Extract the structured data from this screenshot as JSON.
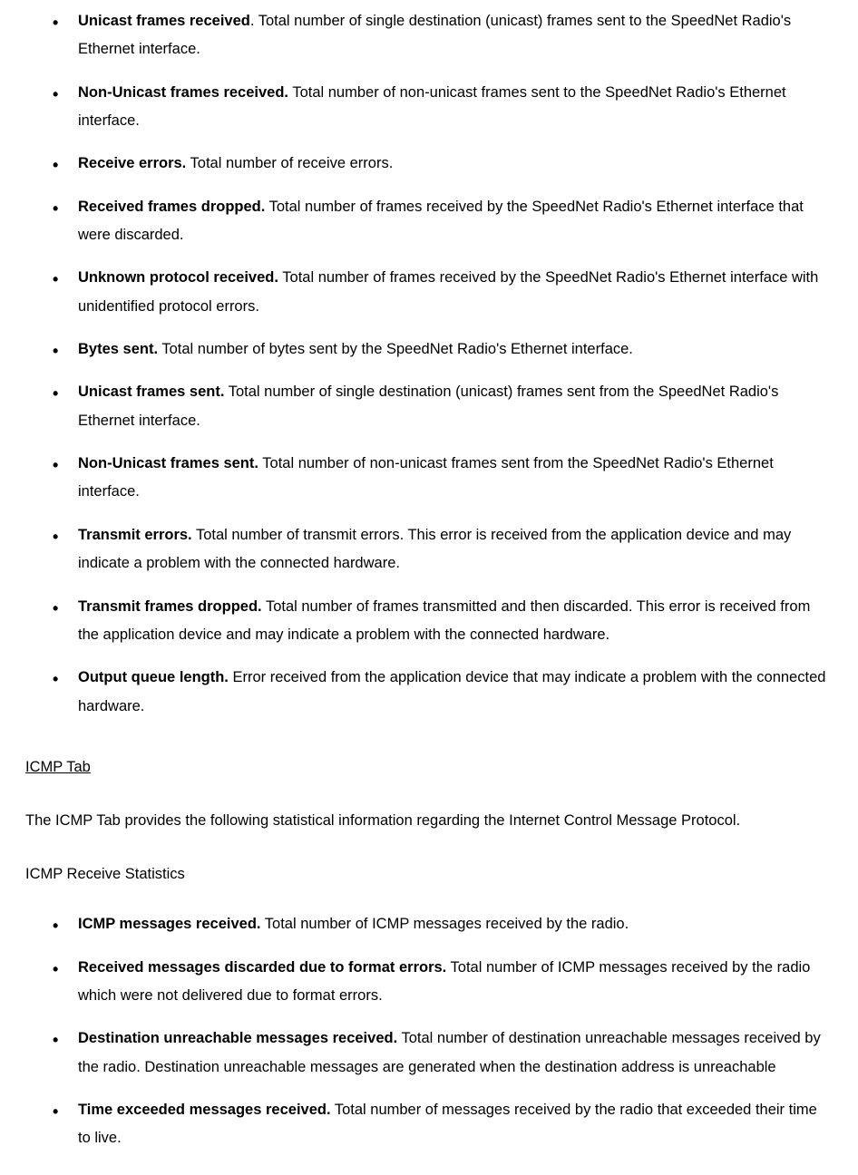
{
  "ethernet_items": [
    {
      "bold": "Unicast frames received",
      "sep": ".  ",
      "desc": "Total number of single destination (unicast) frames sent to the SpeedNet Radio's Ethernet interface."
    },
    {
      "bold": "Non-Unicast frames received.",
      "sep": "  ",
      "desc": "Total number of non-unicast frames sent to the SpeedNet Radio's Ethernet interface."
    },
    {
      "bold": "Receive errors.",
      "sep": "  ",
      "desc": "Total number of receive errors."
    },
    {
      "bold": "Received frames dropped.",
      "sep": "  ",
      "desc": "Total number of frames received by the SpeedNet Radio's Ethernet interface that were discarded."
    },
    {
      "bold": "Unknown protocol received.",
      "sep": "  ",
      "desc": "Total number of frames received by the SpeedNet Radio's Ethernet interface with unidentified protocol errors."
    },
    {
      "bold": "Bytes sent.",
      "sep": "  ",
      "desc": "Total number of bytes sent by the SpeedNet Radio's Ethernet interface."
    },
    {
      "bold": "Unicast frames sent.",
      "sep": "  ",
      "desc": "Total number of single destination (unicast) frames sent from the SpeedNet Radio's Ethernet interface."
    },
    {
      "bold": "Non-Unicast frames sent.",
      "sep": "  ",
      "desc": "Total number of non-unicast frames sent from the SpeedNet Radio's Ethernet interface."
    },
    {
      "bold": "Transmit errors.",
      "sep": "  ",
      "desc": "Total number of transmit errors. This error is received from the application device and may indicate a problem with the connected hardware."
    },
    {
      "bold": "Transmit frames dropped.",
      "sep": "  ",
      "desc": "Total number of frames transmitted and then discarded. This error is received from the application device and may indicate a problem with the connected hardware."
    },
    {
      "bold": "Output queue length.",
      "sep": "  ",
      "desc": "Error received from the application device that may indicate a problem with the connected hardware."
    }
  ],
  "icmp_heading": "ICMP Tab",
  "icmp_paragraph": "The ICMP Tab provides the following statistical information regarding the Internet Control Message Protocol.",
  "icmp_sub_heading": "ICMP Receive Statistics",
  "icmp_items": [
    {
      "bold": "ICMP messages received.",
      "sep": "  ",
      "desc": "Total number of ICMP messages received by the radio."
    },
    {
      "bold": "Received messages discarded due to format errors.",
      "sep": "  ",
      "desc": "Total number of ICMP messages received by the radio which were not delivered due to format errors."
    },
    {
      "bold": "Destination unreachable messages received.",
      "sep": "  ",
      "desc": "Total number of destination unreachable messages received by the radio.  Destination unreachable messages are generated when the destination address is unreachable"
    },
    {
      "bold": "Time exceeded messages received.",
      "sep": "  ",
      "desc": "Total number of messages received by the radio that exceeded their time to live."
    }
  ]
}
